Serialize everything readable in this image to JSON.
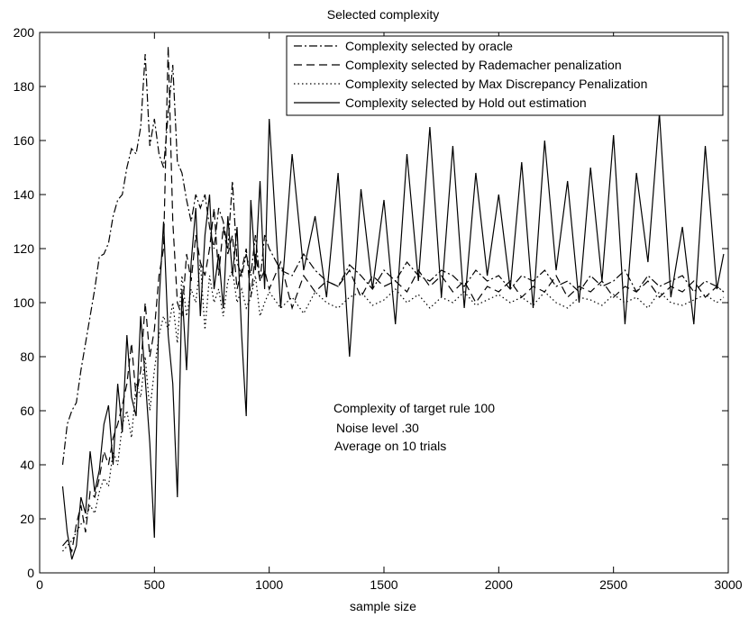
{
  "chart_data": {
    "type": "line",
    "title": "Selected complexity",
    "xlabel": "sample size",
    "ylabel": "",
    "xlim": [
      0,
      3000
    ],
    "ylim": [
      0,
      200
    ],
    "xticks": [
      0,
      500,
      1000,
      1500,
      2000,
      2500,
      3000
    ],
    "yticks": [
      0,
      20,
      40,
      60,
      80,
      100,
      120,
      140,
      160,
      180,
      200
    ],
    "grid": false,
    "legend_position": "top-right",
    "annotations": [
      "Complexity of target rule 100",
      "Noise level .30",
      "Average on 10 trials"
    ],
    "x": [
      100,
      120,
      140,
      160,
      180,
      200,
      220,
      240,
      260,
      280,
      300,
      320,
      340,
      360,
      380,
      400,
      420,
      440,
      460,
      480,
      500,
      520,
      540,
      560,
      580,
      600,
      620,
      640,
      660,
      680,
      700,
      720,
      740,
      760,
      780,
      800,
      820,
      840,
      860,
      880,
      900,
      920,
      940,
      960,
      980,
      1000,
      1050,
      1100,
      1150,
      1200,
      1250,
      1300,
      1350,
      1400,
      1450,
      1500,
      1550,
      1600,
      1650,
      1700,
      1750,
      1800,
      1850,
      1900,
      1950,
      2000,
      2050,
      2100,
      2150,
      2200,
      2250,
      2300,
      2350,
      2400,
      2450,
      2500,
      2550,
      2600,
      2650,
      2700,
      2750,
      2800,
      2850,
      2900,
      2950,
      2980
    ],
    "series": [
      {
        "name": "Complexity selected  by oracle",
        "style": "dashdot",
        "values": [
          40,
          55,
          60,
          63,
          75,
          85,
          95,
          105,
          117,
          118,
          122,
          132,
          138,
          140,
          150,
          157,
          155,
          165,
          192,
          158,
          168,
          155,
          150,
          170,
          188,
          152,
          148,
          138,
          130,
          140,
          135,
          140,
          128,
          120,
          135,
          130,
          120,
          145,
          115,
          110,
          118,
          110,
          125,
          108,
          125,
          120,
          112,
          110,
          118,
          112,
          108,
          106,
          114,
          110,
          105,
          112,
          108,
          115,
          110,
          108,
          112,
          110,
          106,
          112,
          108,
          110,
          105,
          110,
          108,
          112,
          106,
          108,
          104,
          110,
          106,
          108,
          112,
          104,
          110,
          106,
          108,
          110,
          104,
          108,
          106,
          104
        ]
      },
      {
        "name": "Complexity selected by Rademacher penalization",
        "style": "dashed",
        "values": [
          10,
          12,
          8,
          18,
          25,
          15,
          30,
          28,
          35,
          45,
          40,
          50,
          55,
          62,
          70,
          85,
          65,
          75,
          100,
          80,
          90,
          110,
          120,
          195,
          130,
          100,
          95,
          118,
          108,
          125,
          115,
          110,
          120,
          135,
          110,
          128,
          118,
          125,
          105,
          112,
          120,
          102,
          118,
          108,
          112,
          105,
          115,
          98,
          110,
          104,
          108,
          106,
          112,
          102,
          110,
          106,
          108,
          104,
          112,
          106,
          110,
          104,
          108,
          100,
          106,
          104,
          108,
          102,
          106,
          104,
          110,
          102,
          106,
          104,
          108,
          102,
          106,
          104,
          108,
          102,
          106,
          104,
          108,
          102,
          106,
          104
        ]
      },
      {
        "name": "Complexity selected by Max Discrepancy Penalization",
        "style": "dotted",
        "values": [
          8,
          10,
          12,
          15,
          18,
          20,
          25,
          22,
          30,
          35,
          32,
          45,
          40,
          55,
          60,
          50,
          70,
          65,
          80,
          60,
          75,
          88,
          95,
          90,
          100,
          85,
          110,
          95,
          105,
          100,
          115,
          90,
          110,
          100,
          105,
          95,
          108,
          112,
          100,
          105,
          98,
          102,
          110,
          95,
          100,
          104,
          98,
          102,
          96,
          104,
          100,
          98,
          102,
          104,
          99,
          101,
          105,
          100,
          103,
          98,
          102,
          100,
          104,
          99,
          101,
          103,
          100,
          102,
          99,
          104,
          100,
          98,
          102,
          101,
          99,
          103,
          100,
          102,
          98,
          104,
          100,
          99,
          101,
          103,
          100,
          102
        ]
      },
      {
        "name": "Complexity selected by Hold out estimation",
        "style": "solid",
        "values": [
          32,
          15,
          5,
          10,
          28,
          22,
          45,
          30,
          38,
          55,
          62,
          40,
          70,
          52,
          88,
          65,
          58,
          95,
          72,
          48,
          13,
          100,
          130,
          88,
          70,
          28,
          105,
          75,
          115,
          135,
          95,
          125,
          140,
          105,
          118,
          98,
          132,
          110,
          128,
          88,
          58,
          138,
          112,
          145,
          105,
          168,
          98,
          155,
          112,
          132,
          102,
          148,
          80,
          142,
          105,
          138,
          92,
          155,
          108,
          165,
          102,
          158,
          98,
          148,
          110,
          140,
          105,
          152,
          98,
          160,
          112,
          145,
          100,
          150,
          108,
          162,
          92,
          148,
          115,
          170,
          102,
          128,
          92,
          158,
          105,
          118
        ]
      }
    ]
  }
}
